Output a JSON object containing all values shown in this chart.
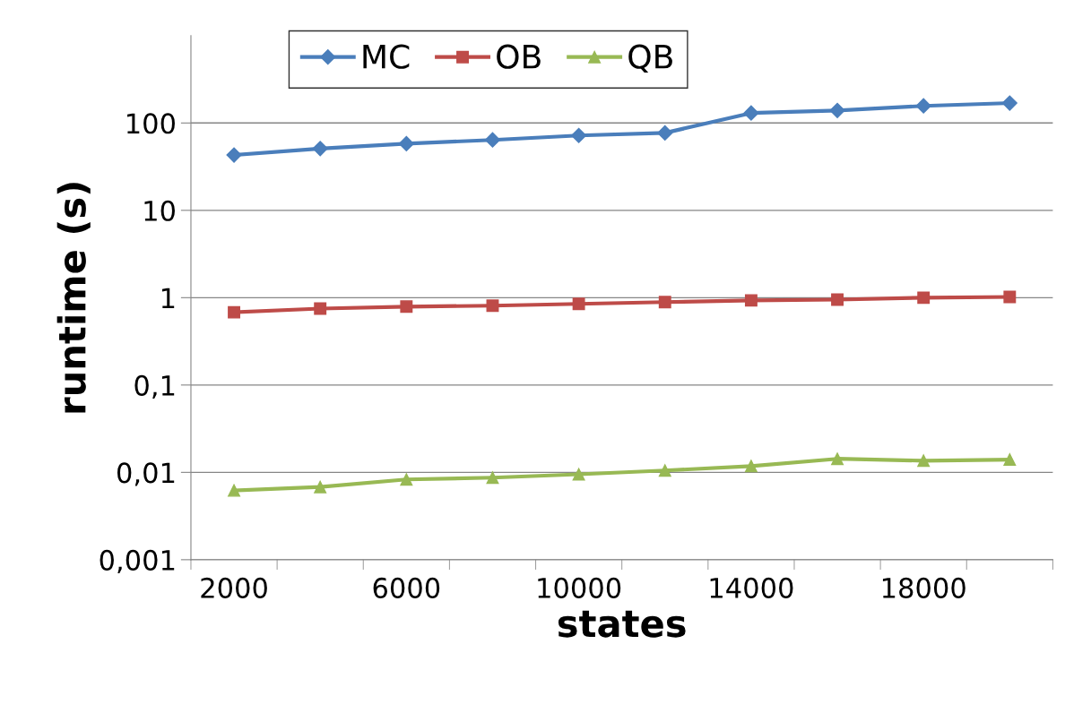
{
  "chart_data": {
    "type": "line",
    "xlabel": "states",
    "ylabel": "runtime (s)",
    "categories": [
      "2000",
      null,
      "6000",
      null,
      "10000",
      null,
      "14000",
      null,
      "18000",
      null
    ],
    "series": [
      {
        "name": "MC",
        "color": "#4a7ebb",
        "marker": "diamond",
        "values": [
          43,
          51,
          58,
          64,
          72,
          77,
          130,
          139,
          157,
          169
        ]
      },
      {
        "name": "OB",
        "color": "#be4b48",
        "marker": "square",
        "values": [
          0.68,
          0.75,
          0.79,
          0.81,
          0.85,
          0.89,
          0.93,
          0.95,
          1.0,
          1.02
        ]
      },
      {
        "name": "QB",
        "color": "#98b954",
        "marker": "triangle",
        "values": [
          0.0062,
          0.0068,
          0.0083,
          0.0087,
          0.0095,
          0.0105,
          0.0118,
          0.0143,
          0.0136,
          0.014
        ]
      }
    ],
    "log": "y",
    "ylim": [
      0.001,
      1000
    ],
    "yticks": [
      {
        "value": 0.001,
        "label": "0,001"
      },
      {
        "value": 0.01,
        "label": "0,01"
      },
      {
        "value": 0.1,
        "label": "0,1"
      },
      1,
      10,
      100
    ],
    "grid": "y",
    "legend": "top",
    "line_style": "solid"
  }
}
